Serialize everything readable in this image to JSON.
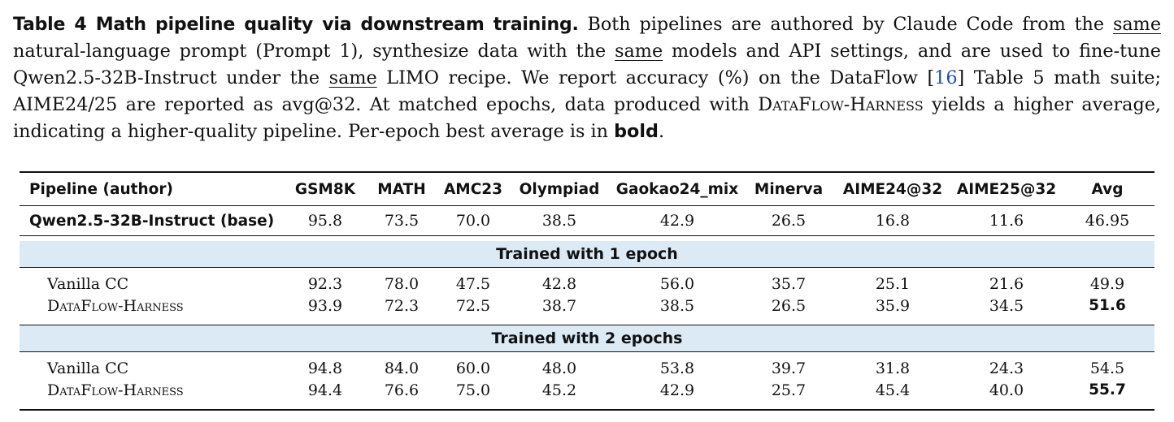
{
  "caption": {
    "label": "Table 4  Math pipeline quality via downstream training.",
    "t1": " Both pipelines are authored by Claude Code from the ",
    "same1": "same",
    "t2": " natural-language prompt (Prompt 1), synthesize data with the ",
    "same2": "same",
    "t3": " models and API settings, and are used to fine-tune Qwen2.5-32B-Instruct under the ",
    "same3": "same",
    "t4": " LIMO recipe. We report accuracy (%) on the DataFlow [",
    "cite": "16",
    "t5": "] Table 5 math suite; AIME24/25 are reported as avg@32. At matched epochs, data produced with ",
    "harness": "DataFlow-Harness",
    "t6": " yields a higher average, indicating a higher-quality pipeline. Per-epoch best average is in ",
    "bold_word": "bold",
    "t7": "."
  },
  "table": {
    "headers": [
      "Pipeline (author)",
      "GSM8K",
      "MATH",
      "AMC23",
      "Olympiad",
      "Gaokao24_mix",
      "Minerva",
      "AIME24@32",
      "AIME25@32",
      "Avg"
    ],
    "base": {
      "label": "Qwen2.5-32B-Instruct (base)",
      "values": [
        "95.8",
        "73.5",
        "70.0",
        "38.5",
        "42.9",
        "26.5",
        "16.8",
        "11.6",
        "46.95"
      ]
    },
    "sections": [
      {
        "title": "Trained with 1 epoch",
        "rows": [
          {
            "label": "Vanilla CC",
            "values": [
              "92.3",
              "78.0",
              "47.5",
              "42.8",
              "56.0",
              "35.7",
              "25.1",
              "21.6",
              "49.9"
            ]
          },
          {
            "label": "DataFlow-Harness",
            "values": [
              "93.9",
              "72.3",
              "72.5",
              "38.7",
              "38.5",
              "26.5",
              "35.9",
              "34.5",
              "51.6"
            ]
          }
        ]
      },
      {
        "title": "Trained with 2 epochs",
        "rows": [
          {
            "label": "Vanilla CC",
            "values": [
              "94.8",
              "84.0",
              "60.0",
              "48.0",
              "53.8",
              "39.7",
              "31.8",
              "24.3",
              "54.5"
            ]
          },
          {
            "label": "DataFlow-Harness",
            "values": [
              "94.4",
              "76.6",
              "75.0",
              "45.2",
              "42.9",
              "25.7",
              "45.4",
              "40.0",
              "55.7"
            ]
          }
        ]
      }
    ]
  }
}
